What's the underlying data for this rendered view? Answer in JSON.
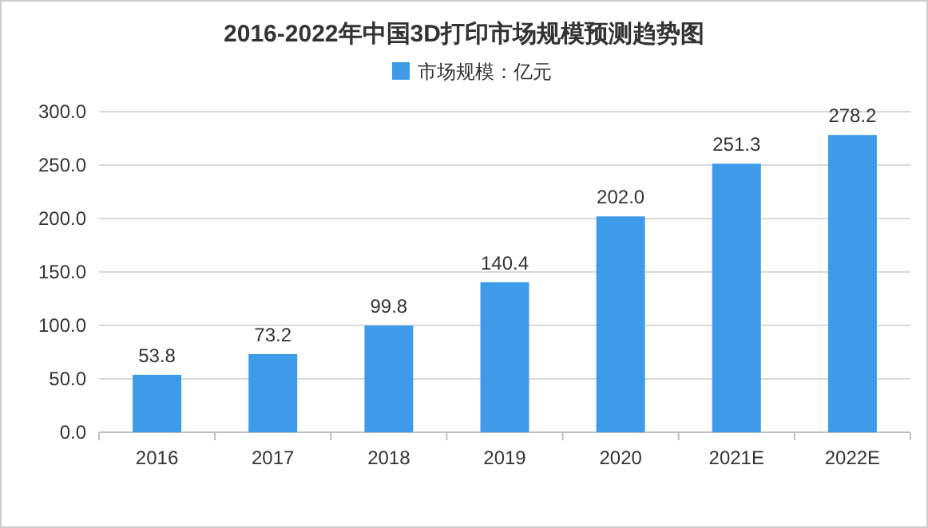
{
  "chart_data": {
    "type": "bar",
    "title": "2016-2022年中国3D打印市场规模预测趋势图",
    "categories": [
      "2016",
      "2017",
      "2018",
      "2019",
      "2020",
      "2021E",
      "2022E"
    ],
    "series": [
      {
        "name": "市场规模：亿元",
        "color": "#3d9be9",
        "values": [
          53.8,
          73.2,
          99.8,
          140.4,
          202.0,
          251.3,
          278.2
        ],
        "value_labels": [
          "53.8",
          "73.2",
          "99.8",
          "140.4",
          "202.0",
          "251.3",
          "278.2"
        ]
      }
    ],
    "ylim": [
      0,
      300
    ],
    "yticks": [
      {
        "value": 0,
        "label": "0.0"
      },
      {
        "value": 50,
        "label": "50.0"
      },
      {
        "value": 100,
        "label": "100.0"
      },
      {
        "value": 150,
        "label": "150.0"
      },
      {
        "value": 200,
        "label": "200.0"
      },
      {
        "value": 250,
        "label": "250.0"
      },
      {
        "value": 300,
        "label": "300.0"
      }
    ],
    "grid": "y",
    "legend": "top"
  }
}
